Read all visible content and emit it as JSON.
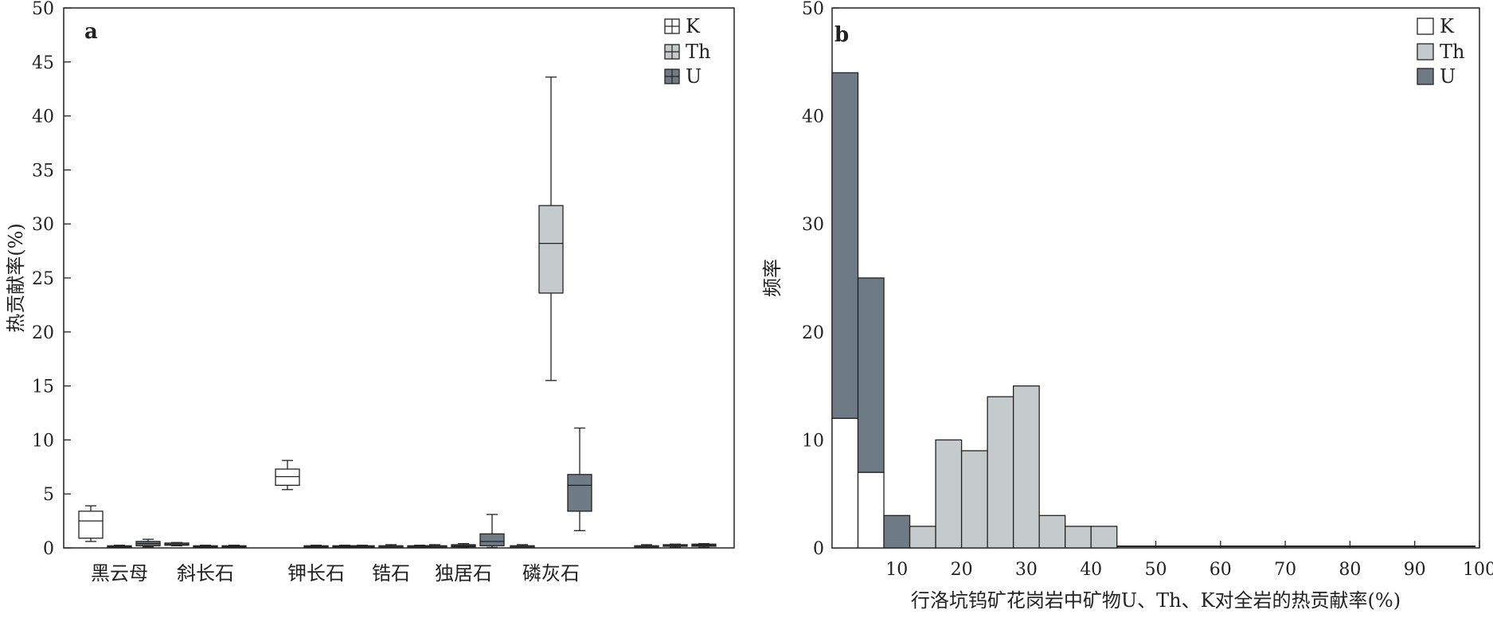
{
  "colors": {
    "K": "#ffffff",
    "Th": "#c5cbcc",
    "U": "#6e7b85",
    "stroke": "#222222"
  },
  "chart_data": [
    {
      "type": "box",
      "panel_label": "a",
      "ylabel": "热贡献率(%)",
      "ylim": [
        0,
        50
      ],
      "yticks": [
        0,
        5,
        10,
        15,
        20,
        25,
        30,
        35,
        40,
        45,
        50
      ],
      "categories": [
        "黑云母",
        "斜长石",
        "钾长石",
        "锆石",
        "独居石",
        "磷灰石",
        ""
      ],
      "legend": [
        {
          "key": "K",
          "label": "K"
        },
        {
          "key": "Th",
          "label": "Th"
        },
        {
          "key": "U",
          "label": "U"
        }
      ],
      "series": [
        {
          "name": "K",
          "boxes": [
            {
              "min": 0.6,
              "q1": 0.9,
              "median": 2.5,
              "q3": 3.4,
              "max": 3.9
            },
            {
              "min": 0.2,
              "q1": 0.25,
              "median": 0.35,
              "q3": 0.45,
              "max": 0.5
            },
            {
              "min": 5.4,
              "q1": 5.8,
              "median": 6.6,
              "q3": 7.3,
              "max": 8.1
            },
            {
              "min": 0.05,
              "q1": 0.1,
              "median": 0.12,
              "q3": 0.2,
              "max": 0.25
            },
            {
              "min": 0.05,
              "q1": 0.1,
              "median": 0.15,
              "q3": 0.2,
              "max": 0.3
            },
            {
              "min": 0.05,
              "q1": 0.1,
              "median": 0.15,
              "q3": 0.2,
              "max": 0.3
            },
            {
              "min": 0.05,
              "q1": 0.1,
              "median": 0.15,
              "q3": 0.2,
              "max": 0.3
            }
          ]
        },
        {
          "name": "Th",
          "boxes": [
            {
              "min": 0.05,
              "q1": 0.1,
              "median": 0.12,
              "q3": 0.2,
              "max": 0.25
            },
            {
              "min": 0.05,
              "q1": 0.1,
              "median": 0.12,
              "q3": 0.2,
              "max": 0.25
            },
            {
              "min": 0.05,
              "q1": 0.1,
              "median": 0.12,
              "q3": 0.2,
              "max": 0.25
            },
            {
              "min": 0.05,
              "q1": 0.1,
              "median": 0.15,
              "q3": 0.2,
              "max": 0.3
            },
            {
              "min": 0.05,
              "q1": 0.1,
              "median": 0.2,
              "q3": 0.3,
              "max": 0.4
            },
            {
              "min": 15.5,
              "q1": 23.6,
              "median": 28.2,
              "q3": 31.7,
              "max": 43.6
            },
            {
              "min": 0.05,
              "q1": 0.15,
              "median": 0.2,
              "q3": 0.3,
              "max": 0.35
            }
          ]
        },
        {
          "name": "U",
          "boxes": [
            {
              "min": 0.1,
              "q1": 0.2,
              "median": 0.4,
              "q3": 0.6,
              "max": 0.8
            },
            {
              "min": 0.05,
              "q1": 0.1,
              "median": 0.12,
              "q3": 0.2,
              "max": 0.25
            },
            {
              "min": 0.05,
              "q1": 0.1,
              "median": 0.12,
              "q3": 0.2,
              "max": 0.25
            },
            {
              "min": 0.05,
              "q1": 0.1,
              "median": 0.15,
              "q3": 0.2,
              "max": 0.25
            },
            {
              "min": 0.05,
              "q1": 0.2,
              "median": 0.6,
              "q3": 1.3,
              "max": 3.1
            },
            {
              "min": 1.6,
              "q1": 3.4,
              "median": 5.8,
              "q3": 6.8,
              "max": 11.1
            },
            {
              "min": 0.05,
              "q1": 0.15,
              "median": 0.25,
              "q3": 0.35,
              "max": 0.4
            }
          ]
        }
      ]
    },
    {
      "type": "bar",
      "panel_label": "b",
      "ylabel": "频率",
      "xlabel": "行洛坑钨矿花岗岩中矿物U、Th、K对全岩的热贡献率(%)",
      "xlim": [
        0,
        100
      ],
      "ylim": [
        0,
        50
      ],
      "xticks": [
        10,
        20,
        30,
        40,
        50,
        60,
        70,
        80,
        90,
        100
      ],
      "yticks": [
        0,
        10,
        20,
        30,
        40,
        50
      ],
      "legend": [
        {
          "key": "K",
          "label": "K"
        },
        {
          "key": "Th",
          "label": "Th"
        },
        {
          "key": "U",
          "label": "U"
        }
      ],
      "bins": [
        {
          "x0": 0,
          "x1": 4,
          "K": 12,
          "Th": 0,
          "U": 32
        },
        {
          "x0": 4,
          "x1": 8,
          "K": 7,
          "Th": 0,
          "U": 18
        },
        {
          "x0": 8,
          "x1": 12,
          "K": 0,
          "Th": 0,
          "U": 3
        },
        {
          "x0": 12,
          "x1": 16,
          "K": 0,
          "Th": 2,
          "U": 0
        },
        {
          "x0": 16,
          "x1": 20,
          "K": 0,
          "Th": 10,
          "U": 0
        },
        {
          "x0": 20,
          "x1": 24,
          "K": 0,
          "Th": 9,
          "U": 0
        },
        {
          "x0": 24,
          "x1": 28,
          "K": 0,
          "Th": 14,
          "U": 0
        },
        {
          "x0": 28,
          "x1": 32,
          "K": 0,
          "Th": 15,
          "U": 0
        },
        {
          "x0": 32,
          "x1": 36,
          "K": 0,
          "Th": 3,
          "U": 0
        },
        {
          "x0": 36,
          "x1": 40,
          "K": 0,
          "Th": 2,
          "U": 0
        },
        {
          "x0": 40,
          "x1": 44,
          "K": 0,
          "Th": 2,
          "U": 0
        }
      ]
    }
  ]
}
